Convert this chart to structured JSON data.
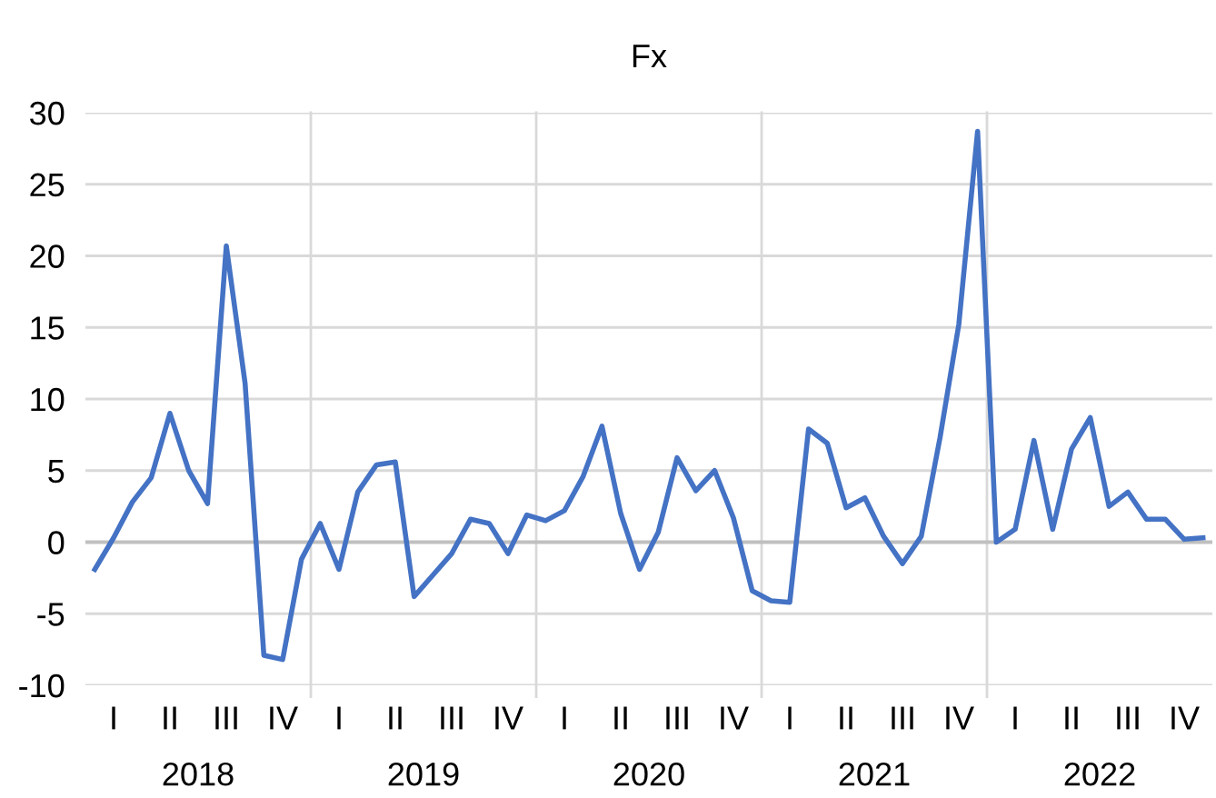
{
  "chart_data": {
    "type": "line",
    "title": "Fx",
    "categories": [
      null,
      "I",
      null,
      null,
      "II",
      null,
      null,
      "III",
      null,
      null,
      "IV",
      null,
      null,
      "I",
      null,
      null,
      "II",
      null,
      null,
      "III",
      null,
      null,
      "IV",
      null,
      null,
      "I",
      null,
      null,
      "II",
      null,
      null,
      "III",
      null,
      null,
      "IV",
      null,
      null,
      "I",
      null,
      null,
      "II",
      null,
      null,
      "III",
      null,
      null,
      "IV",
      null,
      null,
      "I",
      null,
      null,
      "II",
      null,
      null,
      "III",
      null,
      null,
      "IV",
      null
    ],
    "series": [
      {
        "color": "#4472c4",
        "values": [
          -1.9,
          0.3,
          2.8,
          4.5,
          9.0,
          5.0,
          2.7,
          20.7,
          11.1,
          -7.9,
          -8.2,
          -1.2,
          1.3,
          -1.9,
          3.5,
          5.4,
          5.6,
          -3.8,
          -2.3,
          -0.8,
          1.6,
          1.3,
          -0.8,
          1.9,
          1.5,
          2.2,
          4.6,
          8.1,
          2.0,
          -1.9,
          0.7,
          5.9,
          3.6,
          5.0,
          1.7,
          -3.4,
          -4.1,
          -4.2,
          7.9,
          6.9,
          2.4,
          3.1,
          0.4,
          -1.5,
          0.4,
          7.3,
          15.2,
          28.7,
          0.0,
          0.9,
          7.1,
          0.9,
          6.5,
          8.7,
          2.5,
          3.5,
          1.6,
          1.6,
          0.2,
          0.3
        ]
      }
    ],
    "annotations": [
      "2018",
      "2019",
      "2020",
      "2021",
      "2022"
    ],
    "ylim": [
      -10,
      30
    ],
    "yticks": [
      -10,
      -5,
      0,
      5,
      10,
      15,
      20,
      25,
      30
    ],
    "grid": "y",
    "marker": "none",
    "line_style": "solid"
  }
}
